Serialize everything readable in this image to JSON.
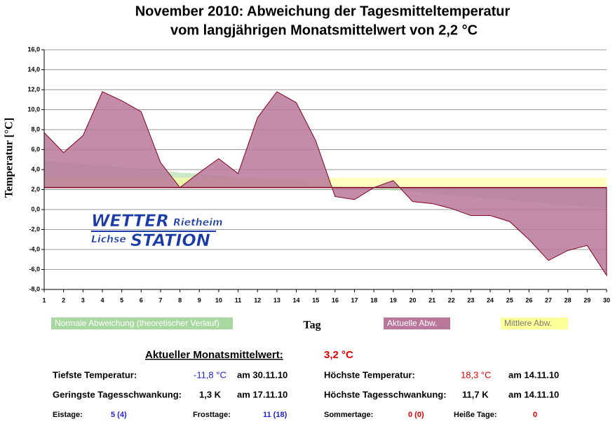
{
  "chart_data": {
    "type": "area",
    "title": "November 2010: Abweichung der Tagesmitteltemperatur",
    "subtitle": "vom langjährigen Monatsmittelwert von 2,2 °C",
    "x_label": "Tag",
    "y_label": "Temperatur [°C]",
    "baseline": 2.2,
    "baseline_color": "#800020",
    "x": [
      1,
      2,
      3,
      4,
      5,
      6,
      7,
      8,
      9,
      10,
      11,
      12,
      13,
      14,
      15,
      16,
      17,
      18,
      19,
      20,
      21,
      22,
      23,
      24,
      25,
      26,
      27,
      28,
      29,
      30
    ],
    "xlim": [
      1,
      30
    ],
    "xticks": [
      1,
      2,
      3,
      4,
      5,
      6,
      7,
      8,
      9,
      10,
      11,
      12,
      13,
      14,
      15,
      16,
      17,
      18,
      19,
      20,
      21,
      22,
      23,
      24,
      25,
      26,
      27,
      28,
      29,
      30
    ],
    "ylim": [
      -8,
      16
    ],
    "yticks": [
      {
        "value": -8,
        "label": "-8,0"
      },
      {
        "value": -6,
        "label": "-6,0"
      },
      {
        "value": -4,
        "label": "-4,0"
      },
      {
        "value": -2,
        "label": "-2,0"
      },
      {
        "value": 0,
        "label": "0,0"
      },
      {
        "value": 2,
        "label": "2,0"
      },
      {
        "value": 4,
        "label": "4,0"
      },
      {
        "value": 6,
        "label": "6,0"
      },
      {
        "value": 8,
        "label": "8,0"
      },
      {
        "value": 10,
        "label": "10,0"
      },
      {
        "value": 12,
        "label": "12,0"
      },
      {
        "value": 14,
        "label": "14,0"
      },
      {
        "value": 16,
        "label": "16,0"
      }
    ],
    "grid": true,
    "series": [
      {
        "name": "Normale Abweichung (theoretischer Verlauf)",
        "color": "#a8d8a0",
        "values": [
          4.9,
          4.7,
          4.6,
          4.4,
          4.2,
          4.1,
          3.9,
          3.7,
          3.6,
          3.4,
          3.2,
          3.1,
          2.9,
          2.7,
          2.6,
          2.4,
          2.2,
          2.1,
          1.9,
          1.8,
          1.6,
          1.4,
          1.3,
          1.1,
          0.9,
          0.8,
          0.6,
          0.4,
          0.3,
          0.1
        ]
      },
      {
        "name": "Mittlere Abw.",
        "color": "#ffff99",
        "values": [
          3.2,
          3.2,
          3.2,
          3.2,
          3.2,
          3.2,
          3.2,
          3.2,
          3.2,
          3.2,
          3.2,
          3.2,
          3.2,
          3.2,
          3.2,
          3.2,
          3.2,
          3.2,
          3.2,
          3.2,
          3.2,
          3.2,
          3.2,
          3.2,
          3.2,
          3.2,
          3.2,
          3.2,
          3.2,
          3.2
        ]
      },
      {
        "name": "Aktuelle Abw.",
        "color": "#b9789a",
        "values": [
          7.7,
          5.7,
          7.4,
          11.8,
          10.9,
          9.8,
          4.7,
          2.2,
          3.7,
          5.1,
          3.6,
          9.2,
          11.8,
          10.7,
          6.9,
          1.3,
          1.0,
          2.2,
          2.9,
          0.8,
          0.6,
          0.1,
          -0.6,
          -0.6,
          -1.2,
          -3.0,
          -5.1,
          -4.1,
          -3.6,
          -6.6
        ]
      }
    ]
  },
  "logo": {
    "line1": "WETTER",
    "line1b": "Rietheim",
    "line2a": "Lichse",
    "line2": "STATION"
  },
  "stats": {
    "mean_label": "Aktueller Monatsmittelwert:",
    "mean_value": "3,2 °C",
    "rows": [
      [
        "Tiefste Temperatur:",
        "-11,8 °C",
        "am 30.11.10",
        "Höchste Temperatur:",
        "18,3 °C",
        "am 14.11.10"
      ],
      [
        "Geringste Tagesschwankung:",
        "1,3 K",
        "am 17.11.10",
        "Höchste Tagesschwankung:",
        "11,7 K",
        "am 14.11.10"
      ],
      [
        "Eistage:",
        "5 (4)",
        "Frosttage:",
        "11 (18)",
        "Sommertage:",
        "0 (0)",
        "Heiße Tage:",
        "0"
      ]
    ]
  }
}
